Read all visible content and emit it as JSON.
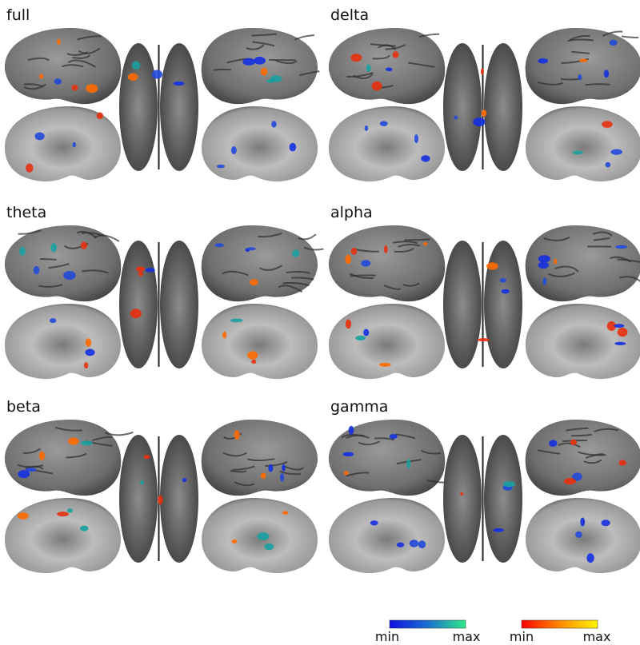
{
  "panels": [
    {
      "label": "full"
    },
    {
      "label": "delta"
    },
    {
      "label": "theta"
    },
    {
      "label": "alpha"
    },
    {
      "label": "beta"
    },
    {
      "label": "gamma"
    }
  ],
  "colorbars": [
    {
      "min_label": "min",
      "max_label": "max"
    },
    {
      "min_label": "min",
      "max_label": "max"
    }
  ]
}
